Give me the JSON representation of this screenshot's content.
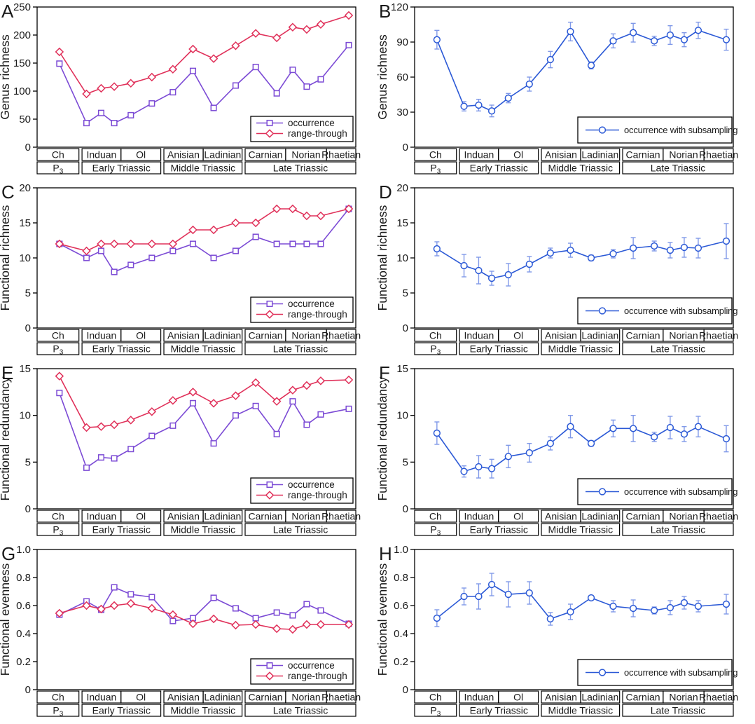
{
  "figure": {
    "background": "#ffffff",
    "description_visible_panels": [
      "A",
      "B",
      "C",
      "D",
      "E",
      "F",
      "G",
      "H"
    ]
  },
  "colors": {
    "occurrence": "#7C4BD5",
    "range_through": "#E0315A",
    "subsampling": "#2B59D6",
    "subsampling_error": "#8099E8",
    "axis": "#000000",
    "text": "#1a1a1a",
    "marker_fill": "#ffffff"
  },
  "legend_labels": {
    "occurrence": "occurrence",
    "range_through": "range-through",
    "subsampling": "occurrence with subsampling"
  },
  "timescale": {
    "stages": [
      "Ch",
      "Induan",
      "Ol",
      "Anisian",
      "Ladinian",
      "Carnian",
      "Norian",
      "Rhaetian"
    ],
    "stage_bounds": [
      0,
      0.136,
      0.263,
      0.393,
      0.521,
      0.648,
      0.78,
      0.908,
      1.0
    ],
    "eras": [
      {
        "label": "P",
        "sub": "3"
      },
      {
        "label": "Early Triassic"
      },
      {
        "label": "Middle Triassic"
      },
      {
        "label": "Late Triassic"
      }
    ],
    "era_bounds": [
      0,
      0.136,
      0.393,
      0.648,
      1.0
    ]
  },
  "x_positions": [
    0.07,
    0.155,
    0.201,
    0.242,
    0.294,
    0.36,
    0.426,
    0.489,
    0.554,
    0.623,
    0.686,
    0.752,
    0.802,
    0.846,
    0.89,
    0.978
  ],
  "chart_data": [
    {
      "letter": "A",
      "type": "line",
      "ylabel": "Genus richness",
      "ylim": [
        0,
        250
      ],
      "yticks": [
        "0",
        "50",
        "100",
        "150",
        "200",
        "250"
      ],
      "legend_position": "lower right",
      "series": [
        {
          "name": "occurrence",
          "marker": "square",
          "color": "occurrence",
          "values": [
            149,
            43,
            61,
            43,
            57,
            78,
            98,
            136,
            70,
            110,
            143,
            96,
            138,
            108,
            121,
            182
          ]
        },
        {
          "name": "range-through",
          "marker": "diamond",
          "color": "range_through",
          "values": [
            170,
            95,
            105,
            108,
            114,
            125,
            139,
            175,
            158,
            181,
            203,
            195,
            214,
            210,
            219,
            235
          ]
        }
      ]
    },
    {
      "letter": "B",
      "type": "line",
      "ylabel": "Genus richness",
      "ylim": [
        0,
        120
      ],
      "yticks": [
        "0",
        "30",
        "60",
        "90",
        "120"
      ],
      "legend_position": "lower right",
      "series": [
        {
          "name": "occurrence with subsampling",
          "marker": "circle",
          "color": "subsampling",
          "values": [
            92,
            35,
            36,
            31,
            42,
            54,
            75,
            99,
            70,
            91,
            98,
            91,
            96,
            92,
            100,
            92
          ],
          "errors": [
            8,
            4,
            5,
            5,
            4,
            6,
            7,
            8,
            3,
            6,
            8,
            4,
            8,
            6,
            7,
            9
          ]
        }
      ]
    },
    {
      "letter": "C",
      "type": "line",
      "ylabel": "Functional richness",
      "ylim": [
        0,
        20
      ],
      "yticks": [
        "0",
        "5",
        "10",
        "15",
        "20"
      ],
      "legend_position": "lower right",
      "series": [
        {
          "name": "occurrence",
          "marker": "square",
          "color": "occurrence",
          "values": [
            12,
            10,
            11,
            8,
            9,
            10,
            11,
            12,
            10,
            11,
            13,
            12,
            12,
            12,
            12,
            17
          ]
        },
        {
          "name": "range-through",
          "marker": "diamond",
          "color": "range_through",
          "values": [
            12,
            11,
            12,
            12,
            12,
            12,
            12,
            14,
            14,
            15,
            15,
            17,
            17,
            16,
            16,
            17
          ]
        }
      ]
    },
    {
      "letter": "D",
      "type": "line",
      "ylabel": "Functional richness",
      "ylim": [
        0,
        20
      ],
      "yticks": [
        "0",
        "5",
        "10",
        "15",
        "20"
      ],
      "legend_position": "lower right",
      "series": [
        {
          "name": "occurrence with subsampling",
          "marker": "circle",
          "color": "subsampling",
          "values": [
            11.3,
            8.9,
            8.2,
            7.1,
            7.6,
            9.1,
            10.7,
            11.1,
            10.0,
            10.6,
            11.4,
            11.7,
            11.1,
            11.5,
            11.4,
            12.4
          ],
          "errors": [
            1.0,
            1.6,
            1.9,
            1.0,
            1.6,
            1.1,
            0.7,
            1.0,
            0.4,
            0.6,
            1.5,
            0.7,
            1.1,
            1.4,
            1.4,
            2.5
          ]
        }
      ]
    },
    {
      "letter": "E",
      "type": "line",
      "ylabel": "Functional redundancy",
      "ylim": [
        0,
        15
      ],
      "yticks": [
        "0",
        "5",
        "10",
        "15"
      ],
      "legend_position": "lower right",
      "series": [
        {
          "name": "occurrence",
          "marker": "square",
          "color": "occurrence",
          "values": [
            12.4,
            4.4,
            5.5,
            5.4,
            6.4,
            7.8,
            8.9,
            11.3,
            7.0,
            10.0,
            11.0,
            8.0,
            11.5,
            9.0,
            10.1,
            10.7
          ]
        },
        {
          "name": "range-through",
          "marker": "diamond",
          "color": "range_through",
          "values": [
            14.2,
            8.7,
            8.8,
            9.0,
            9.5,
            10.4,
            11.6,
            12.5,
            11.3,
            12.1,
            13.5,
            11.5,
            12.7,
            13.2,
            13.7,
            13.8
          ]
        }
      ]
    },
    {
      "letter": "F",
      "type": "line",
      "ylabel": "Functional redundancy",
      "ylim": [
        0,
        15
      ],
      "yticks": [
        "0",
        "5",
        "10",
        "15"
      ],
      "legend_position": "lower right",
      "series": [
        {
          "name": "occurrence with subsampling",
          "marker": "circle",
          "color": "subsampling",
          "values": [
            8.1,
            4.0,
            4.5,
            4.3,
            5.6,
            6.0,
            7.0,
            8.8,
            7.0,
            8.6,
            8.6,
            7.7,
            8.7,
            8.0,
            8.8,
            7.5
          ],
          "errors": [
            1.2,
            0.6,
            1.2,
            1.0,
            1.2,
            1.0,
            0.7,
            1.2,
            0.3,
            0.9,
            1.4,
            0.5,
            1.2,
            0.8,
            1.1,
            1.4
          ]
        }
      ]
    },
    {
      "letter": "G",
      "type": "line",
      "ylabel": "Functional evenness",
      "ylim": [
        0,
        1.0
      ],
      "yticks": [
        "0",
        "0.2",
        "0.4",
        "0.6",
        "0.8",
        "1.0"
      ],
      "legend_position": "lower right",
      "series": [
        {
          "name": "occurrence",
          "marker": "square",
          "color": "occurrence",
          "values": [
            0.535,
            0.63,
            0.57,
            0.73,
            0.68,
            0.66,
            0.49,
            0.51,
            0.655,
            0.58,
            0.51,
            0.55,
            0.53,
            0.61,
            0.565,
            0.47
          ]
        },
        {
          "name": "range-through",
          "marker": "diamond",
          "color": "range_through",
          "values": [
            0.545,
            0.6,
            0.575,
            0.6,
            0.615,
            0.58,
            0.535,
            0.47,
            0.505,
            0.46,
            0.465,
            0.435,
            0.43,
            0.465,
            0.465,
            0.465
          ]
        }
      ]
    },
    {
      "letter": "H",
      "type": "line",
      "ylabel": "Functional evenness",
      "ylim": [
        0,
        1.0
      ],
      "yticks": [
        "0",
        "0.2",
        "0.4",
        "0.6",
        "0.8",
        "1.0"
      ],
      "legend_position": "lower right",
      "series": [
        {
          "name": "occurrence with subsampling",
          "marker": "circle",
          "color": "subsampling",
          "values": [
            0.51,
            0.665,
            0.665,
            0.75,
            0.68,
            0.69,
            0.505,
            0.555,
            0.655,
            0.595,
            0.58,
            0.565,
            0.585,
            0.62,
            0.595,
            0.61
          ],
          "errors": [
            0.06,
            0.06,
            0.09,
            0.08,
            0.09,
            0.08,
            0.045,
            0.055,
            0.015,
            0.04,
            0.06,
            0.025,
            0.05,
            0.045,
            0.04,
            0.07
          ]
        }
      ]
    }
  ]
}
